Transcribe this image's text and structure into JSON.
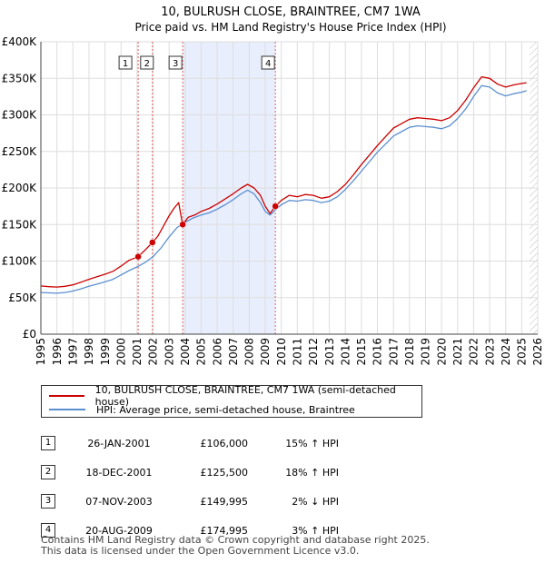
{
  "chart_data": {
    "type": "line",
    "title": "10, BULRUSH CLOSE, BRAINTREE, CM7 1WA",
    "subtitle": "Price paid vs. HM Land Registry's House Price Index (HPI)",
    "xlim": [
      1995,
      2026
    ],
    "ylim": [
      0,
      400000
    ],
    "x_ticks": [
      1995,
      1996,
      1997,
      1998,
      1999,
      2000,
      2001,
      2002,
      2003,
      2004,
      2005,
      2006,
      2007,
      2008,
      2009,
      2010,
      2011,
      2012,
      2013,
      2014,
      2015,
      2016,
      2017,
      2018,
      2019,
      2020,
      2021,
      2022,
      2023,
      2024,
      2025,
      2026
    ],
    "y_ticks": [
      {
        "value": 0,
        "label": "£0"
      },
      {
        "value": 50000,
        "label": "£50K"
      },
      {
        "value": 100000,
        "label": "£100K"
      },
      {
        "value": 150000,
        "label": "£150K"
      },
      {
        "value": 200000,
        "label": "£200K"
      },
      {
        "value": 250000,
        "label": "£250K"
      },
      {
        "value": 300000,
        "label": "£300K"
      },
      {
        "value": 350000,
        "label": "£350K"
      },
      {
        "value": 400000,
        "label": "£400K"
      }
    ],
    "shaded_regions": [
      [
        2003.85,
        2009.63
      ]
    ],
    "future_hatch_from": 2025.5,
    "series": [
      {
        "name": "10, BULRUSH CLOSE, BRAINTREE, CM7 1WA (semi-detached house)",
        "color": "#cc0000",
        "points": [
          [
            1995,
            66000
          ],
          [
            1995.5,
            65000
          ],
          [
            1996,
            64500
          ],
          [
            1996.5,
            65500
          ],
          [
            1997,
            67500
          ],
          [
            1997.5,
            71000
          ],
          [
            1998,
            75000
          ],
          [
            1998.5,
            78500
          ],
          [
            1999,
            82000
          ],
          [
            1999.5,
            86000
          ],
          [
            2000,
            93000
          ],
          [
            2000.5,
            101000
          ],
          [
            2001.07,
            106000
          ],
          [
            2001.5,
            115000
          ],
          [
            2001.96,
            125500
          ],
          [
            2002.3,
            134000
          ],
          [
            2002.7,
            150000
          ],
          [
            2003,
            162000
          ],
          [
            2003.3,
            172000
          ],
          [
            2003.6,
            180000
          ],
          [
            2003.84,
            149995
          ],
          [
            2004.2,
            160000
          ],
          [
            2004.6,
            163000
          ],
          [
            2005,
            168000
          ],
          [
            2005.5,
            172000
          ],
          [
            2006,
            178000
          ],
          [
            2006.5,
            185000
          ],
          [
            2007,
            192000
          ],
          [
            2007.5,
            200000
          ],
          [
            2007.9,
            205000
          ],
          [
            2008.3,
            200000
          ],
          [
            2008.7,
            190000
          ],
          [
            2009,
            175000
          ],
          [
            2009.3,
            165000
          ],
          [
            2009.63,
            174995
          ],
          [
            2010,
            183000
          ],
          [
            2010.5,
            190000
          ],
          [
            2011,
            188000
          ],
          [
            2011.5,
            191000
          ],
          [
            2012,
            190000
          ],
          [
            2012.5,
            186000
          ],
          [
            2013,
            188000
          ],
          [
            2013.5,
            195000
          ],
          [
            2014,
            205000
          ],
          [
            2014.5,
            218000
          ],
          [
            2015,
            232000
          ],
          [
            2015.5,
            245000
          ],
          [
            2016,
            258000
          ],
          [
            2016.5,
            270000
          ],
          [
            2017,
            282000
          ],
          [
            2017.5,
            288000
          ],
          [
            2018,
            294000
          ],
          [
            2018.5,
            296000
          ],
          [
            2019,
            295000
          ],
          [
            2019.5,
            294000
          ],
          [
            2020,
            292000
          ],
          [
            2020.5,
            296000
          ],
          [
            2021,
            306000
          ],
          [
            2021.5,
            320000
          ],
          [
            2022,
            337000
          ],
          [
            2022.5,
            352000
          ],
          [
            2023,
            350000
          ],
          [
            2023.5,
            342000
          ],
          [
            2024,
            338000
          ],
          [
            2024.5,
            341000
          ],
          [
            2025,
            343000
          ],
          [
            2025.3,
            344000
          ]
        ]
      },
      {
        "name": "HPI: Average price, semi-detached house, Braintree",
        "color": "#5b8fd0",
        "points": [
          [
            1995,
            57000
          ],
          [
            1995.5,
            56500
          ],
          [
            1996,
            56000
          ],
          [
            1996.5,
            57000
          ],
          [
            1997,
            59000
          ],
          [
            1997.5,
            62000
          ],
          [
            1998,
            65500
          ],
          [
            1998.5,
            68500
          ],
          [
            1999,
            71500
          ],
          [
            1999.5,
            75000
          ],
          [
            2000,
            81000
          ],
          [
            2000.5,
            87000
          ],
          [
            2001,
            92000
          ],
          [
            2001.5,
            98000
          ],
          [
            2002,
            106000
          ],
          [
            2002.5,
            118000
          ],
          [
            2003,
            133000
          ],
          [
            2003.5,
            146000
          ],
          [
            2004,
            153000
          ],
          [
            2004.5,
            159000
          ],
          [
            2005,
            163000
          ],
          [
            2005.5,
            166000
          ],
          [
            2006,
            171000
          ],
          [
            2006.5,
            177000
          ],
          [
            2007,
            184000
          ],
          [
            2007.5,
            192000
          ],
          [
            2007.9,
            197000
          ],
          [
            2008.3,
            192000
          ],
          [
            2008.7,
            180000
          ],
          [
            2009,
            168000
          ],
          [
            2009.3,
            163000
          ],
          [
            2009.63,
            170000
          ],
          [
            2010,
            177000
          ],
          [
            2010.5,
            183000
          ],
          [
            2011,
            182000
          ],
          [
            2011.5,
            184000
          ],
          [
            2012,
            183000
          ],
          [
            2012.5,
            180000
          ],
          [
            2013,
            182000
          ],
          [
            2013.5,
            188000
          ],
          [
            2014,
            198000
          ],
          [
            2014.5,
            210000
          ],
          [
            2015,
            223000
          ],
          [
            2015.5,
            236000
          ],
          [
            2016,
            249000
          ],
          [
            2016.5,
            260000
          ],
          [
            2017,
            271000
          ],
          [
            2017.5,
            277000
          ],
          [
            2018,
            283000
          ],
          [
            2018.5,
            285000
          ],
          [
            2019,
            284000
          ],
          [
            2019.5,
            283000
          ],
          [
            2020,
            281000
          ],
          [
            2020.5,
            285000
          ],
          [
            2021,
            295000
          ],
          [
            2021.5,
            308000
          ],
          [
            2022,
            325000
          ],
          [
            2022.5,
            340000
          ],
          [
            2023,
            338000
          ],
          [
            2023.5,
            330000
          ],
          [
            2024,
            326000
          ],
          [
            2024.5,
            329000
          ],
          [
            2025,
            331000
          ],
          [
            2025.3,
            333000
          ]
        ]
      }
    ],
    "sales": [
      {
        "id": "1",
        "x": 2001.07,
        "price": 106000
      },
      {
        "id": "2",
        "x": 2001.96,
        "price": 125500
      },
      {
        "id": "3",
        "x": 2003.85,
        "price": 149995
      },
      {
        "id": "4",
        "x": 2009.63,
        "price": 174995
      }
    ]
  },
  "legend": {
    "property_label": "10, BULRUSH CLOSE, BRAINTREE, CM7 1WA (semi-detached house)",
    "hpi_label": "HPI: Average price, semi-detached house, Braintree"
  },
  "transactions": [
    {
      "id": "1",
      "date": "26-JAN-2001",
      "price": "£106,000",
      "hpi": "15% ↑ HPI"
    },
    {
      "id": "2",
      "date": "18-DEC-2001",
      "price": "£125,500",
      "hpi": "18% ↑ HPI"
    },
    {
      "id": "3",
      "date": "07-NOV-2003",
      "price": "£149,995",
      "hpi": "2% ↓ HPI"
    },
    {
      "id": "4",
      "date": "20-AUG-2009",
      "price": "£174,995",
      "hpi": "3% ↑ HPI"
    }
  ],
  "footer": {
    "line1": "Contains HM Land Registry data © Crown copyright and database right 2025.",
    "line2": "This data is licensed under the Open Government Licence v3.0."
  }
}
